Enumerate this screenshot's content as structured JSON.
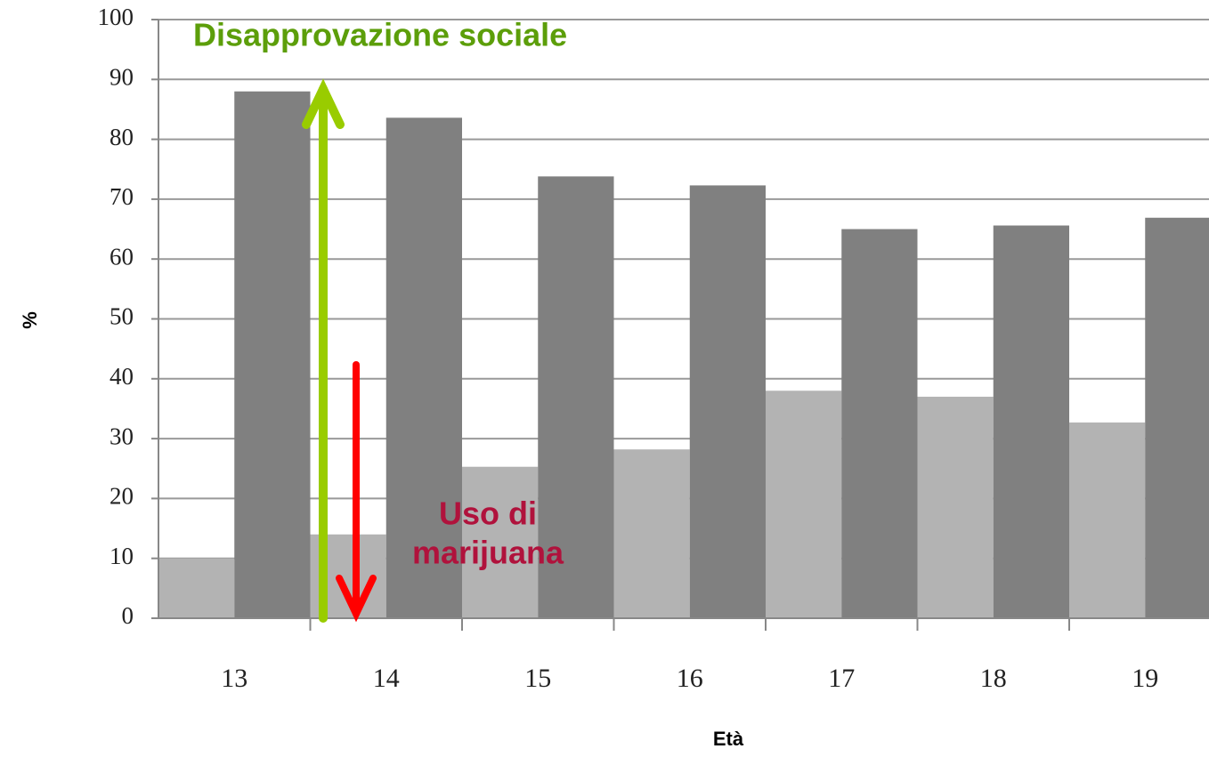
{
  "chart_data": {
    "type": "bar",
    "categories": [
      "13",
      "14",
      "15",
      "16",
      "17",
      "18",
      "19"
    ],
    "series": [
      {
        "color": "#b3b3b3",
        "values": [
          10,
          14,
          25.3,
          28.2,
          38,
          37,
          32.7
        ]
      },
      {
        "color": "#808080",
        "values": [
          88,
          83.6,
          73.8,
          72.3,
          65,
          65.6,
          66.9
        ]
      }
    ],
    "ylim": [
      0,
      100
    ],
    "yticks": [
      0,
      10,
      20,
      30,
      40,
      50,
      60,
      70,
      80,
      90,
      100
    ],
    "grid": true,
    "y_label": "%",
    "x_label": "Età",
    "annotations": [
      {
        "lines": [
          "Disapprovazione sociale"
        ],
        "color": "#5c9e0a"
      },
      {
        "lines": [
          "Uso di",
          "marijuana"
        ],
        "color": "#b0123c"
      }
    ]
  }
}
